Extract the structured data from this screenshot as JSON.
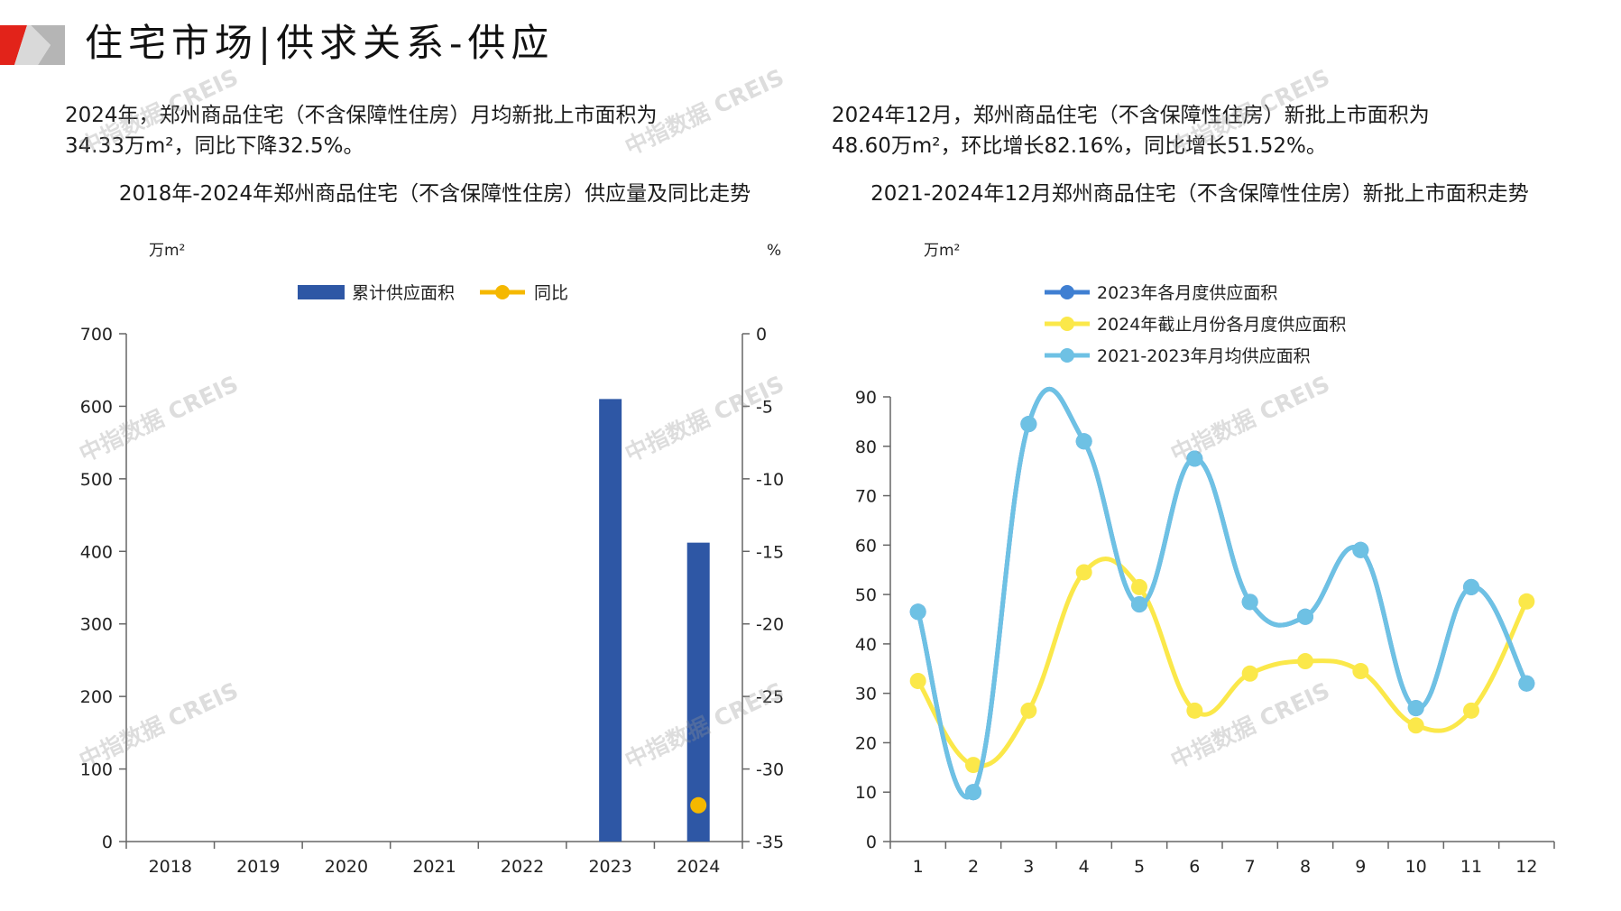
{
  "page": {
    "title": "住宅市场|供求关系-供应"
  },
  "summary_left": {
    "line1": "2024年，郑州商品住宅（不含保障性住房）月均新批上市面积为",
    "line2": "34.33万m²，同比下降32.5%。"
  },
  "summary_right": {
    "line1": "2024年12月，郑州商品住宅（不含保障性住房）新批上市面积为",
    "line2": "48.60万m²，环比增长82.16%，同比增长51.52%。"
  },
  "watermark": "中指数据 CREIS",
  "colors": {
    "bar": "#2e57a5",
    "yoy": "#f5b800",
    "series_2023": "#3f7fd2",
    "series_2024": "#fbe84a",
    "series_avg": "#6ec1e4",
    "axis": "#666666",
    "logo_red": "#e2231a",
    "logo_gray": "#b5b5b5"
  },
  "chart_data": [
    {
      "type": "bar",
      "title": "2018年-2024年郑州商品住宅（不含保障性住房）供应量及同比走势",
      "ylabel": "万m²",
      "y2label": "%",
      "categories": [
        "2018",
        "2019",
        "2020",
        "2021",
        "2022",
        "2023",
        "2024"
      ],
      "series": [
        {
          "name": "累计供应面积",
          "axis": "left",
          "values": [
            null,
            null,
            null,
            null,
            null,
            610,
            412
          ]
        },
        {
          "name": "同比",
          "axis": "right",
          "marker": "dot",
          "values": [
            null,
            null,
            null,
            null,
            null,
            null,
            -32.5
          ]
        }
      ],
      "ylim": [
        0,
        700
      ],
      "yticks": [
        0,
        100,
        200,
        300,
        400,
        500,
        600,
        700
      ],
      "y2lim": [
        -35,
        0
      ],
      "y2ticks": [
        0,
        -5,
        -10,
        -15,
        -20,
        -25,
        -30,
        -35
      ],
      "legend": "top-center"
    },
    {
      "type": "line",
      "title": "2021-2024年12月郑州商品住宅（不含保障性住房）新批上市面积走势",
      "ylabel": "万m²",
      "x": [
        "1",
        "2",
        "3",
        "4",
        "5",
        "6",
        "7",
        "8",
        "9",
        "10",
        "11",
        "12"
      ],
      "series": [
        {
          "name": "2023年各月度供应面积",
          "values": [
            46.5,
            10,
            84.5,
            81,
            48,
            77.5,
            48.5,
            45.5,
            59,
            27,
            51.5,
            32
          ]
        },
        {
          "name": "2024年截止月份各月度供应面积",
          "values": [
            32.5,
            15.5,
            26.5,
            54.5,
            51.5,
            26.5,
            34,
            36.5,
            34.5,
            23.5,
            26.5,
            48.6
          ]
        },
        {
          "name": "2021-2023年月均供应面积",
          "values": [
            46.5,
            10,
            84.5,
            81,
            48,
            77.5,
            48.5,
            45.5,
            59,
            27,
            51.5,
            32
          ]
        }
      ],
      "ylim": [
        0,
        90
      ],
      "yticks": [
        0,
        10,
        20,
        30,
        40,
        50,
        60,
        70,
        80,
        90
      ],
      "legend": "top-left"
    }
  ]
}
